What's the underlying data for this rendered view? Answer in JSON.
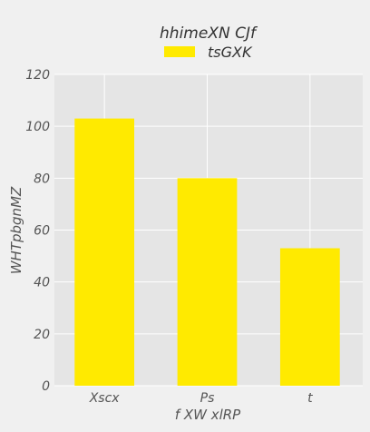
{
  "chart_data": {
    "type": "bar",
    "title": "hhimeXN CJf",
    "xlabel": "f XW xlRP",
    "ylabel": "WHTpbgnMZ",
    "categories": [
      "Xscx",
      "Ps",
      "t"
    ],
    "series": [
      {
        "name": "tsGXK",
        "values": [
          103,
          80,
          53
        ],
        "color": "#ffea00"
      }
    ],
    "ylim": [
      0,
      120
    ],
    "yticks": [
      0,
      20,
      40,
      60,
      80,
      100,
      120
    ],
    "grid": true,
    "legend_position": "top-center",
    "colors": {
      "plot_background": "#e5e5e5",
      "page_background": "#f0f0f0",
      "grid": "#ffffff",
      "bar": "#ffea00"
    }
  }
}
